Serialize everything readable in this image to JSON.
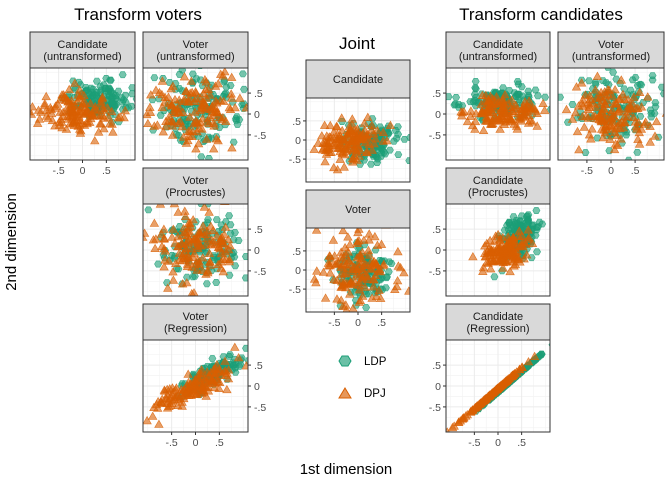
{
  "titles": {
    "left": "Transform voters",
    "center": "Joint",
    "right": "Transform candidates"
  },
  "axes": {
    "x_title": "1st dimension",
    "y_title": "2nd dimension",
    "tick_values": [
      -0.5,
      0,
      0.5
    ],
    "tick_labels": [
      "-.5",
      "0",
      ".5"
    ],
    "xlim": [
      -1.1,
      1.1
    ],
    "ylim": [
      -1.1,
      1.1
    ]
  },
  "legend": {
    "items": [
      {
        "label": "LDP",
        "shape": "hexagon",
        "color": "#1b9e77"
      },
      {
        "label": "DPJ",
        "shape": "triangle",
        "color": "#d95f02"
      }
    ]
  },
  "colors": {
    "ldp": "#1b9e77",
    "dpj": "#d95f02",
    "strip_bg": "#d9d9d9",
    "grid": "#ebebeb",
    "panel_border": "#333333"
  },
  "chart_data": {
    "type": "scatter",
    "series_names": [
      "LDP",
      "DPJ"
    ],
    "panels": [
      {
        "id": "lv-cand-untr",
        "group": "Transform voters",
        "label": "Candidate\n(untransformed)",
        "ldp": {
          "center": [
            0.3,
            0.35
          ],
          "spread": [
            0.32,
            0.22
          ],
          "corr": 0
        },
        "dpj": {
          "center": [
            -0.15,
            0.0
          ],
          "spread": [
            0.4,
            0.25
          ],
          "corr": 0
        },
        "x_ticks": true,
        "y_ticks": false
      },
      {
        "id": "lv-vote-untr",
        "group": "Transform voters",
        "label": "Voter\n(untransformed)",
        "ldp": {
          "center": [
            0.05,
            0.1
          ],
          "spread": [
            0.45,
            0.45
          ],
          "corr": 0
        },
        "dpj": {
          "center": [
            0.0,
            0.05
          ],
          "spread": [
            0.45,
            0.42
          ],
          "corr": 0
        },
        "x_ticks": false,
        "y_ticks": true
      },
      {
        "id": "lv-vote-proc",
        "group": "Transform voters",
        "label": "Voter\n(Procrustes)",
        "ldp": {
          "center": [
            0.1,
            0.1
          ],
          "spread": [
            0.42,
            0.42
          ],
          "corr": 0
        },
        "dpj": {
          "center": [
            -0.05,
            0.1
          ],
          "spread": [
            0.42,
            0.45
          ],
          "corr": 0
        },
        "x_ticks": false,
        "y_ticks": true
      },
      {
        "id": "lv-vote-reg",
        "group": "Transform voters",
        "label": "Voter\n(Regression)",
        "ldp": {
          "center": [
            0.3,
            0.25
          ],
          "spread": [
            0.35,
            0.25
          ],
          "corr": 0.85
        },
        "dpj": {
          "center": [
            -0.1,
            -0.05
          ],
          "spread": [
            0.45,
            0.3
          ],
          "corr": 0.85
        },
        "x_ticks": true,
        "y_ticks": true
      },
      {
        "id": "j-cand",
        "group": "Joint",
        "label": "Candidate",
        "ldp": {
          "center": [
            0.3,
            -0.1
          ],
          "spread": [
            0.3,
            0.25
          ],
          "corr": 0
        },
        "dpj": {
          "center": [
            -0.2,
            -0.05
          ],
          "spread": [
            0.3,
            0.25
          ],
          "corr": 0
        },
        "x_ticks": false,
        "y_ticks": true
      },
      {
        "id": "j-vote",
        "group": "Joint",
        "label": "Voter",
        "ldp": {
          "center": [
            0.1,
            -0.1
          ],
          "spread": [
            0.3,
            0.35
          ],
          "corr": 0
        },
        "dpj": {
          "center": [
            0.0,
            0.0
          ],
          "spread": [
            0.42,
            0.45
          ],
          "corr": 0
        },
        "x_ticks": true,
        "y_ticks": true
      },
      {
        "id": "rc-cand-untr",
        "group": "Transform candidates",
        "label": "Candidate\n(untransformed)",
        "ldp": {
          "center": [
            0.0,
            0.3
          ],
          "spread": [
            0.4,
            0.18
          ],
          "corr": 0
        },
        "dpj": {
          "center": [
            0.1,
            0.0
          ],
          "spread": [
            0.4,
            0.2
          ],
          "corr": 0
        },
        "x_ticks": false,
        "y_ticks": true
      },
      {
        "id": "rc-vote-untr",
        "group": "Transform candidates",
        "label": "Voter\n(untransformed)",
        "ldp": {
          "center": [
            0.05,
            0.1
          ],
          "spread": [
            0.45,
            0.45
          ],
          "corr": 0
        },
        "dpj": {
          "center": [
            0.0,
            0.0
          ],
          "spread": [
            0.45,
            0.42
          ],
          "corr": 0
        },
        "x_ticks": true,
        "y_ticks": false
      },
      {
        "id": "rc-cand-proc",
        "group": "Transform candidates",
        "label": "Candidate\n(Procrustes)",
        "ldp": {
          "center": [
            0.45,
            0.35
          ],
          "spread": [
            0.22,
            0.3
          ],
          "corr": 0.5
        },
        "dpj": {
          "center": [
            0.15,
            -0.05
          ],
          "spread": [
            0.25,
            0.22
          ],
          "corr": 0.5
        },
        "x_ticks": false,
        "y_ticks": true
      },
      {
        "id": "rc-cand-reg",
        "group": "Transform candidates",
        "label": "Candidate\n(Regression)",
        "ldp": {
          "center": [
            0.35,
            0.2
          ],
          "spread": [
            0.3,
            0.0
          ],
          "corr": 1.0,
          "line": true
        },
        "dpj": {
          "center": [
            -0.15,
            -0.2
          ],
          "spread": [
            0.35,
            0.0
          ],
          "corr": 1.0,
          "line": true
        },
        "x_ticks": true,
        "y_ticks": true
      }
    ]
  }
}
